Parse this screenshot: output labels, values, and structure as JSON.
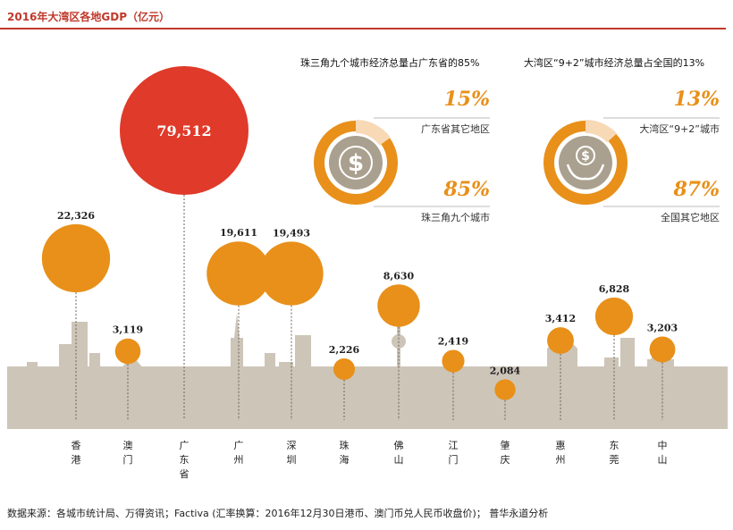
{
  "title": "2016年大湾区各地GDP（亿元）",
  "source": "数据来源：各城市统计局、万得资讯；Factiva (汇率换算：2016年12月30日港币、澳门币兑人民币收盘价)； 普华永道分析",
  "colors": {
    "accent": "#c0392b",
    "orange": "#e8901a",
    "light": "#f7d9b5",
    "skyline": "#cdc5b8",
    "red_bubble": "#e03a2a",
    "icon_bg": "#aaa08f"
  },
  "chart_data": {
    "type": "bubble",
    "title": "2016年大湾区各地GDP（亿元）",
    "unit": "亿元",
    "categories": [
      "香港",
      "澳门",
      "广东省",
      "广州",
      "深圳",
      "珠海",
      "佛山",
      "江门",
      "肇庆",
      "惠州",
      "东莞",
      "中山"
    ],
    "values": [
      22326,
      3119,
      79512,
      19611,
      19493,
      2226,
      8630,
      2419,
      2084,
      3412,
      6828,
      3203
    ],
    "value_labels": [
      "22,326",
      "3,119",
      "79,512",
      "19,611",
      "19,493",
      "2,226",
      "8,630",
      "2,419",
      "2,084",
      "3,412",
      "6,828",
      "3,203"
    ],
    "category_labels": [
      "香\n港",
      "澳\n门",
      "广\n东\n省",
      "广\n州",
      "深\n圳",
      "珠\n海",
      "佛\n山",
      "江\n门",
      "肇\n庆",
      "惠\n州",
      "东\n莞",
      "中\n山"
    ]
  },
  "donuts": [
    {
      "title": "珠三角九个城市经济总量占广东省的85%",
      "icon": "dollar-icon",
      "small_pct": "15%",
      "small_label": "广东省其它地区",
      "small_value": 15,
      "big_pct": "85%",
      "big_label": "珠三角九个城市",
      "big_value": 85
    },
    {
      "title": "大湾区“9+2”城市经济总量占全国的13%",
      "icon": "hands-dollar-icon",
      "small_pct": "13%",
      "small_label": "大湾区“9+2”城市",
      "small_value": 13,
      "big_pct": "87%",
      "big_label": "全国其它地区",
      "big_value": 87
    }
  ]
}
